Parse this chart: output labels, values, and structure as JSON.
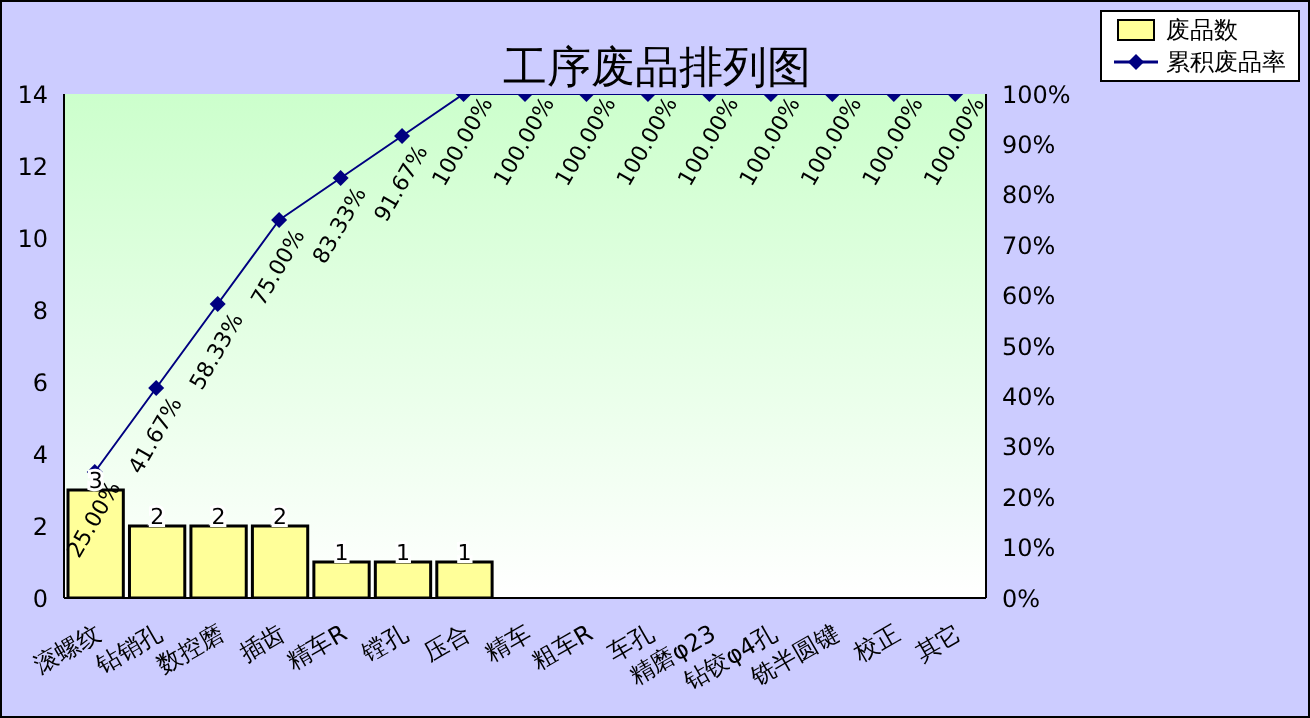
{
  "chart_data": {
    "type": "bar",
    "title": "工序废品排列图",
    "categories": [
      "滚螺纹",
      "钻销孔",
      "数控磨",
      "插齿",
      "精车R",
      "镗孔",
      "压合",
      "精车",
      "粗车R",
      "车孔",
      "精磨φ23",
      "钻铰φ4孔",
      "铣半圆键",
      "校正",
      "其它"
    ],
    "series": [
      {
        "name": "废品数",
        "color": "#ffff99",
        "values": [
          3,
          2,
          2,
          2,
          1,
          1,
          1,
          0,
          0,
          0,
          0,
          0,
          0,
          0,
          0
        ],
        "value_labels": [
          "3",
          "2",
          "2",
          "2",
          "1",
          "1",
          "1",
          null,
          null,
          null,
          null,
          null,
          null,
          null,
          null
        ]
      },
      {
        "name": "累积废品率",
        "type": "line",
        "axis": "y2",
        "color": "#000080",
        "marker": "diamond",
        "values": [
          25,
          41.67,
          58.33,
          75,
          83.33,
          91.67,
          100,
          100,
          100,
          100,
          100,
          100,
          100,
          100,
          100
        ],
        "value_labels": [
          "25.00%",
          "41.67%",
          "58.33%",
          "75.00%",
          "83.33%",
          "91.67%",
          "100.00%",
          "100.00%",
          "100.00%",
          "100.00%",
          "100.00%",
          "100.00%",
          "100.00%",
          "100.00%",
          "100.00%"
        ]
      }
    ],
    "ylim": [
      0,
      14
    ],
    "yticks": [
      0,
      2,
      4,
      6,
      8,
      10,
      12,
      14
    ],
    "y2lim": [
      0,
      100
    ],
    "y2ticks": [
      {
        "value": 0,
        "label": "0%"
      },
      {
        "value": 10,
        "label": "10%"
      },
      {
        "value": 20,
        "label": "20%"
      },
      {
        "value": 30,
        "label": "30%"
      },
      {
        "value": 40,
        "label": "40%"
      },
      {
        "value": 50,
        "label": "50%"
      },
      {
        "value": 60,
        "label": "60%"
      },
      {
        "value": 70,
        "label": "70%"
      },
      {
        "value": 80,
        "label": "80%"
      },
      {
        "value": 90,
        "label": "90%"
      },
      {
        "value": 100,
        "label": "100%"
      }
    ],
    "grid": false,
    "legend": "top right"
  }
}
